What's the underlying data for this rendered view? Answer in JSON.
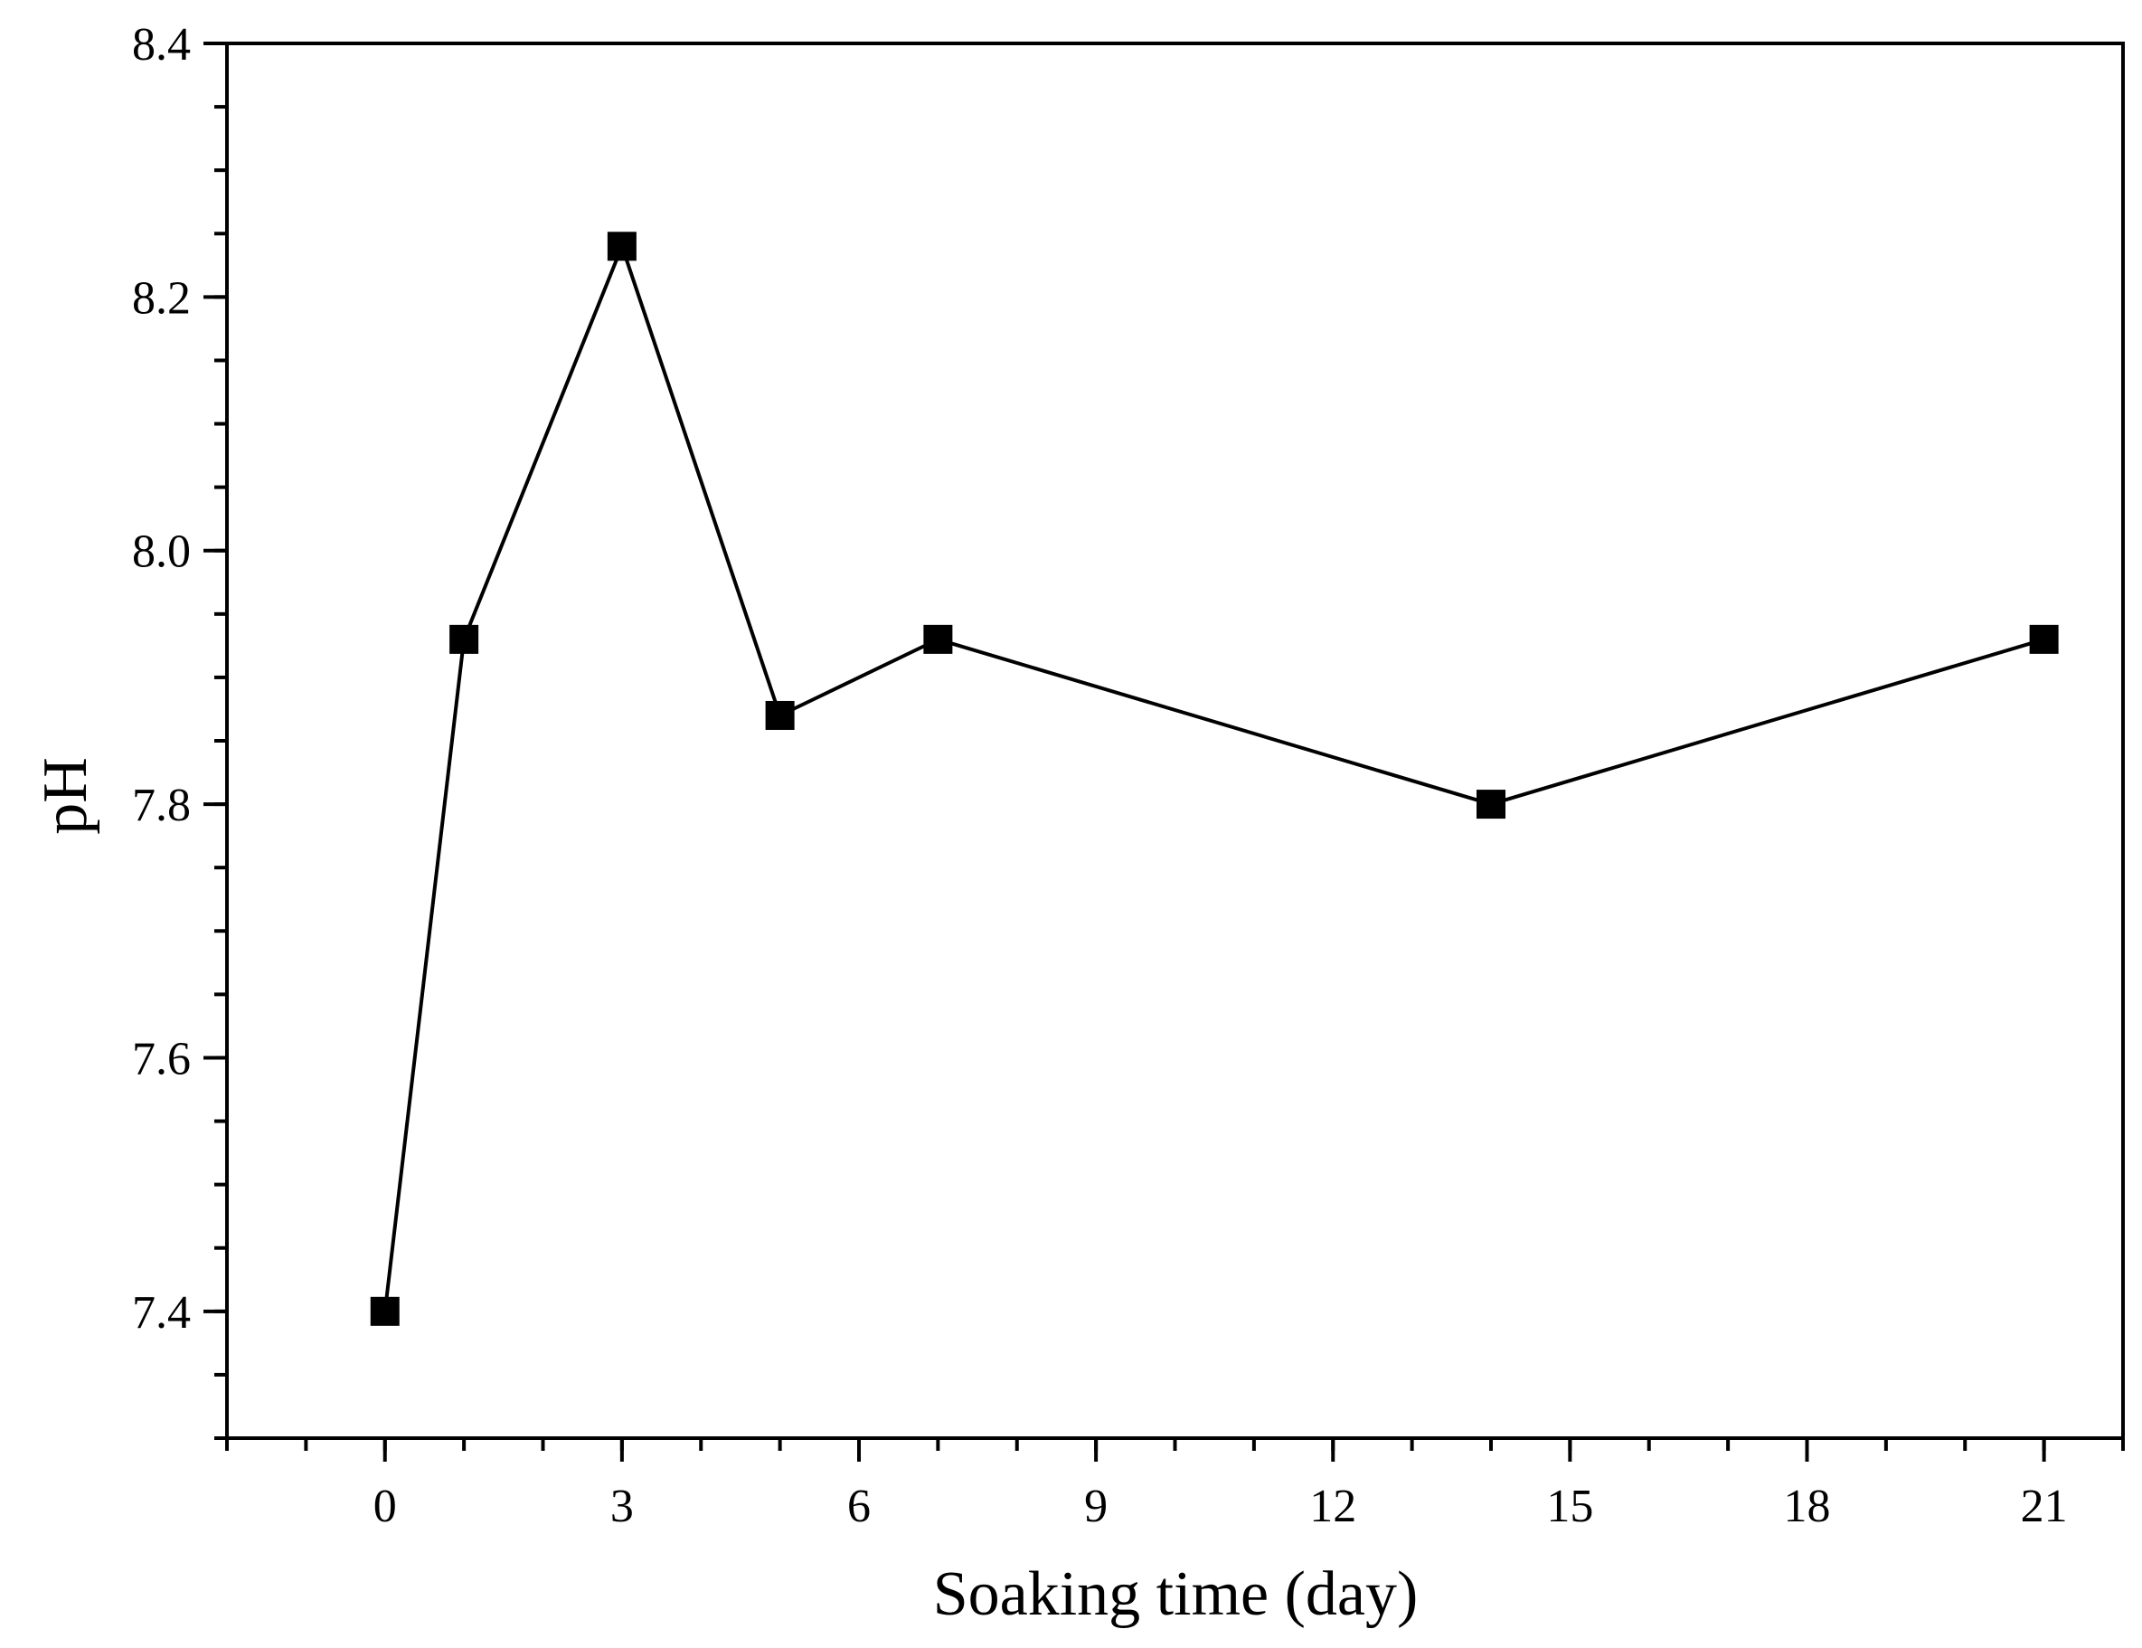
{
  "chart_data": {
    "type": "line",
    "title": "",
    "xlabel": "Soaking time (day)",
    "ylabel": "pH",
    "xlim": [
      -2,
      22
    ],
    "ylim": [
      7.3,
      8.4
    ],
    "x_ticks": [
      0,
      3,
      6,
      9,
      12,
      15,
      18,
      21
    ],
    "x_tick_labels": [
      "0",
      "3",
      "6",
      "9",
      "12",
      "15",
      "18",
      "21"
    ],
    "y_ticks": [
      7.4,
      7.6,
      7.8,
      8.0,
      8.2,
      8.4
    ],
    "y_tick_labels": [
      "7.4",
      "7.6",
      "7.8",
      "8.0",
      "8.2",
      "8.4"
    ],
    "grid": false,
    "series": [
      {
        "name": "pH",
        "marker": "square",
        "color": "#000000",
        "x": [
          0,
          1,
          3,
          5,
          7,
          14,
          21
        ],
        "y": [
          7.4,
          7.93,
          8.24,
          7.87,
          7.93,
          7.8,
          7.93
        ]
      }
    ]
  }
}
